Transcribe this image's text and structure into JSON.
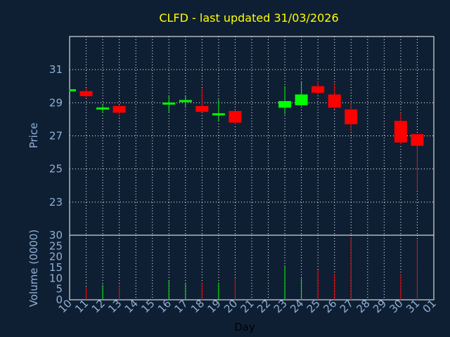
{
  "chart_data": {
    "type": "candlestick",
    "title": "CLFD - last updated 31/03/2026",
    "xlabel": "Day",
    "price_panel": {
      "ylabel": "Price",
      "yticks": [
        "31",
        "29",
        "27",
        "25",
        "23"
      ],
      "ylim": [
        21,
        33
      ]
    },
    "volume_panel": {
      "ylabel": "Volume (0000)",
      "yticks": [
        "30",
        "25",
        "20",
        "15",
        "10",
        "5",
        "0"
      ],
      "ylim": [
        0,
        30
      ]
    },
    "x_tick_labels": [
      "10",
      "11",
      "12",
      "13",
      "14",
      "15",
      "16",
      "17",
      "18",
      "19",
      "20",
      "21",
      "22",
      "23",
      "24",
      "25",
      "26",
      "27",
      "28",
      "29",
      "30",
      "31",
      "01"
    ],
    "colors": {
      "up": "#00ff00",
      "down": "#ff0000",
      "title": "#ffff00",
      "axis_text": "#8fb0d6",
      "background": "#0f1f33",
      "grid": "#ffffff"
    },
    "candles": [
      {
        "day": 10,
        "open": 29.75,
        "close": 29.75,
        "high": 29.8,
        "low": 29.7,
        "volume": 0
      },
      {
        "day": 11,
        "open": 29.7,
        "close": 29.4,
        "high": 29.9,
        "low": 29.25,
        "volume": 6
      },
      {
        "day": 12,
        "open": 28.65,
        "close": 28.65,
        "high": 28.9,
        "low": 28.4,
        "volume": 7
      },
      {
        "day": 13,
        "open": 28.8,
        "close": 28.4,
        "high": 28.9,
        "low": 28.1,
        "volume": 7
      },
      {
        "day": 16,
        "open": 28.9,
        "close": 29.0,
        "high": 29.4,
        "low": 28.4,
        "volume": 9
      },
      {
        "day": 17,
        "open": 29.1,
        "close": 29.1,
        "high": 29.4,
        "low": 28.7,
        "volume": 8
      },
      {
        "day": 18,
        "open": 28.8,
        "close": 28.45,
        "high": 29.9,
        "low": 28.4,
        "volume": 8
      },
      {
        "day": 19,
        "open": 28.25,
        "close": 28.35,
        "high": 29.2,
        "low": 27.9,
        "volume": 8
      },
      {
        "day": 20,
        "open": 28.5,
        "close": 27.8,
        "high": 28.5,
        "low": 27.7,
        "volume": 10
      },
      {
        "day": 23,
        "open": 28.7,
        "close": 29.1,
        "high": 30.0,
        "low": 28.3,
        "volume": 16
      },
      {
        "day": 24,
        "open": 28.85,
        "close": 29.5,
        "high": 30.3,
        "low": 28.8,
        "volume": 10
      },
      {
        "day": 25,
        "open": 30.0,
        "close": 29.6,
        "high": 30.3,
        "low": 29.5,
        "volume": 14
      },
      {
        "day": 26,
        "open": 29.5,
        "close": 28.7,
        "high": 30.2,
        "low": 28.6,
        "volume": 12
      },
      {
        "day": 27,
        "open": 28.6,
        "close": 27.7,
        "high": 29.0,
        "low": 27.3,
        "volume": 29
      },
      {
        "day": 30,
        "open": 27.9,
        "close": 26.6,
        "high": 28.4,
        "low": 26.5,
        "volume": 12
      },
      {
        "day": 31,
        "open": 27.1,
        "close": 26.4,
        "high": 27.1,
        "low": 23.7,
        "volume": 28
      }
    ]
  }
}
